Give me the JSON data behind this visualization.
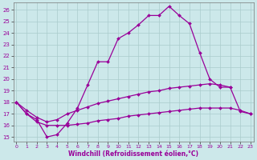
{
  "xlabel": "Windchill (Refroidissement éolien,°C)",
  "background_color": "#cce8ea",
  "grid_color": "#aacccc",
  "line_color": "#990099",
  "ylim": [
    15,
    26
  ],
  "xlim": [
    0,
    23
  ],
  "yticks": [
    15,
    16,
    17,
    18,
    19,
    20,
    21,
    22,
    23,
    24,
    25,
    26
  ],
  "xticks": [
    0,
    1,
    2,
    3,
    4,
    5,
    6,
    7,
    8,
    9,
    10,
    11,
    12,
    13,
    14,
    15,
    16,
    17,
    18,
    19,
    20,
    21,
    22,
    23
  ],
  "line1_x": [
    0,
    1,
    2,
    3,
    4,
    5,
    6,
    7,
    8,
    9,
    10,
    11,
    12,
    13,
    14,
    15,
    16,
    17,
    18,
    19,
    20,
    21
  ],
  "line1_y": [
    18.0,
    17.0,
    16.5,
    15.0,
    15.2,
    16.2,
    17.5,
    19.5,
    21.5,
    21.5,
    23.5,
    24.0,
    24.7,
    25.5,
    25.5,
    26.3,
    25.5,
    24.8,
    22.3,
    20.0,
    19.3,
    19.3
  ],
  "line2_x": [
    0,
    1,
    2,
    3,
    4,
    5,
    6,
    7,
    8,
    9,
    10,
    11,
    12,
    13,
    14,
    15,
    16,
    17,
    18,
    19,
    20,
    21,
    22,
    23
  ],
  "line2_y": [
    18.0,
    17.3,
    16.7,
    16.3,
    16.5,
    17.0,
    17.3,
    17.6,
    17.9,
    18.1,
    18.3,
    18.5,
    18.7,
    18.9,
    19.0,
    19.2,
    19.3,
    19.4,
    19.5,
    19.6,
    19.5,
    19.3,
    17.2,
    17.0
  ],
  "line3_x": [
    0,
    1,
    2,
    3,
    4,
    5,
    6,
    7,
    8,
    9,
    10,
    11,
    12,
    13,
    14,
    15,
    16,
    17,
    18,
    19,
    20,
    21,
    22,
    23
  ],
  "line3_y": [
    18.0,
    17.0,
    16.3,
    16.0,
    16.0,
    16.0,
    16.1,
    16.2,
    16.4,
    16.5,
    16.6,
    16.8,
    16.9,
    17.0,
    17.1,
    17.2,
    17.3,
    17.4,
    17.5,
    17.5,
    17.5,
    17.5,
    17.3,
    17.0
  ]
}
